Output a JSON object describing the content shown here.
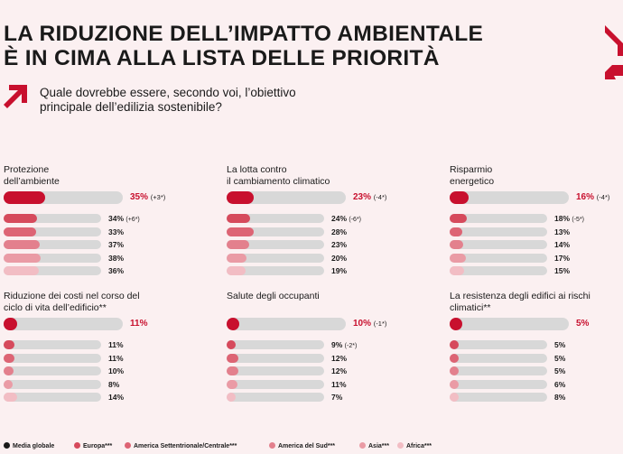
{
  "title": {
    "line1": "LA RIDUZIONE DELL’IMPATTO AMBIENTALE",
    "line2": "È IN CIMA ALLA LISTA DELLE PRIORITÀ"
  },
  "question": {
    "line1": "Quale dovrebbe essere, secondo voi, l’obiettivo",
    "line2": "principale dell’edilizia sostenibile?"
  },
  "colors": {
    "accent": "#c8102e",
    "track": "#d8d8d8",
    "background": "#fbf0f1",
    "regions": [
      "#d64a5c",
      "#dd6474",
      "#e3808d",
      "#ea9ba5",
      "#f2bdc4"
    ]
  },
  "legend": [
    {
      "label": "Media globale",
      "color": "#1a1a1a"
    },
    {
      "label": "Europa***",
      "color": "#d64a5c"
    },
    {
      "label": "America Settentrionale/Centrale***",
      "color": "#dd6474"
    },
    {
      "label": "America del Sud***",
      "color": "#e3808d"
    },
    {
      "label": "Asia***",
      "color": "#ea9ba5"
    },
    {
      "label": "Africa***",
      "color": "#f2bdc4"
    }
  ],
  "chart_data": [
    {
      "type": "bar",
      "title_line1": "Protezione",
      "title_line2": "dell’ambiente",
      "global": {
        "value": 35,
        "label": "35%",
        "change": "(+3*)"
      },
      "regions": [
        {
          "value": 34,
          "label": "34%",
          "change": "(+6*)"
        },
        {
          "value": 33,
          "label": "33%",
          "change": ""
        },
        {
          "value": 37,
          "label": "37%",
          "change": ""
        },
        {
          "value": 38,
          "label": "38%",
          "change": ""
        },
        {
          "value": 36,
          "label": "36%",
          "change": ""
        }
      ]
    },
    {
      "type": "bar",
      "title_line1": "La lotta contro",
      "title_line2": "il cambiamento climatico",
      "global": {
        "value": 23,
        "label": "23%",
        "change": "(-4*)"
      },
      "regions": [
        {
          "value": 24,
          "label": "24%",
          "change": "(-6*)"
        },
        {
          "value": 28,
          "label": "28%",
          "change": ""
        },
        {
          "value": 23,
          "label": "23%",
          "change": ""
        },
        {
          "value": 20,
          "label": "20%",
          "change": ""
        },
        {
          "value": 19,
          "label": "19%",
          "change": ""
        }
      ]
    },
    {
      "type": "bar",
      "title_line1": "Risparmio",
      "title_line2": "energetico",
      "global": {
        "value": 16,
        "label": "16%",
        "change": "(-4*)"
      },
      "regions": [
        {
          "value": 18,
          "label": "18%",
          "change": "(-5*)"
        },
        {
          "value": 13,
          "label": "13%",
          "change": ""
        },
        {
          "value": 14,
          "label": "14%",
          "change": ""
        },
        {
          "value": 17,
          "label": "17%",
          "change": ""
        },
        {
          "value": 15,
          "label": "15%",
          "change": ""
        }
      ]
    },
    {
      "type": "bar",
      "title_line1": "Riduzione dei costi nel corso del",
      "title_line2": "ciclo di vita dell’edificio**",
      "global": {
        "value": 11,
        "label": "11%",
        "change": ""
      },
      "regions": [
        {
          "value": 11,
          "label": "11%",
          "change": ""
        },
        {
          "value": 11,
          "label": "11%",
          "change": ""
        },
        {
          "value": 10,
          "label": "10%",
          "change": ""
        },
        {
          "value": 8,
          "label": "8%",
          "change": ""
        },
        {
          "value": 14,
          "label": "14%",
          "change": ""
        }
      ]
    },
    {
      "type": "bar",
      "title_line1": "Salute degli occupanti",
      "title_line2": "",
      "global": {
        "value": 10,
        "label": "10%",
        "change": "(-1*)"
      },
      "regions": [
        {
          "value": 9,
          "label": "9%",
          "change": "(-2*)"
        },
        {
          "value": 12,
          "label": "12%",
          "change": ""
        },
        {
          "value": 12,
          "label": "12%",
          "change": ""
        },
        {
          "value": 11,
          "label": "11%",
          "change": ""
        },
        {
          "value": 7,
          "label": "7%",
          "change": ""
        }
      ]
    },
    {
      "type": "bar",
      "title_line1": "La resistenza degli edifici ai rischi",
      "title_line2": "climatici**",
      "global": {
        "value": 5,
        "label": "5%",
        "change": ""
      },
      "regions": [
        {
          "value": 5,
          "label": "5%",
          "change": ""
        },
        {
          "value": 5,
          "label": "5%",
          "change": ""
        },
        {
          "value": 5,
          "label": "5%",
          "change": ""
        },
        {
          "value": 6,
          "label": "6%",
          "change": ""
        },
        {
          "value": 8,
          "label": "8%",
          "change": ""
        }
      ]
    }
  ]
}
